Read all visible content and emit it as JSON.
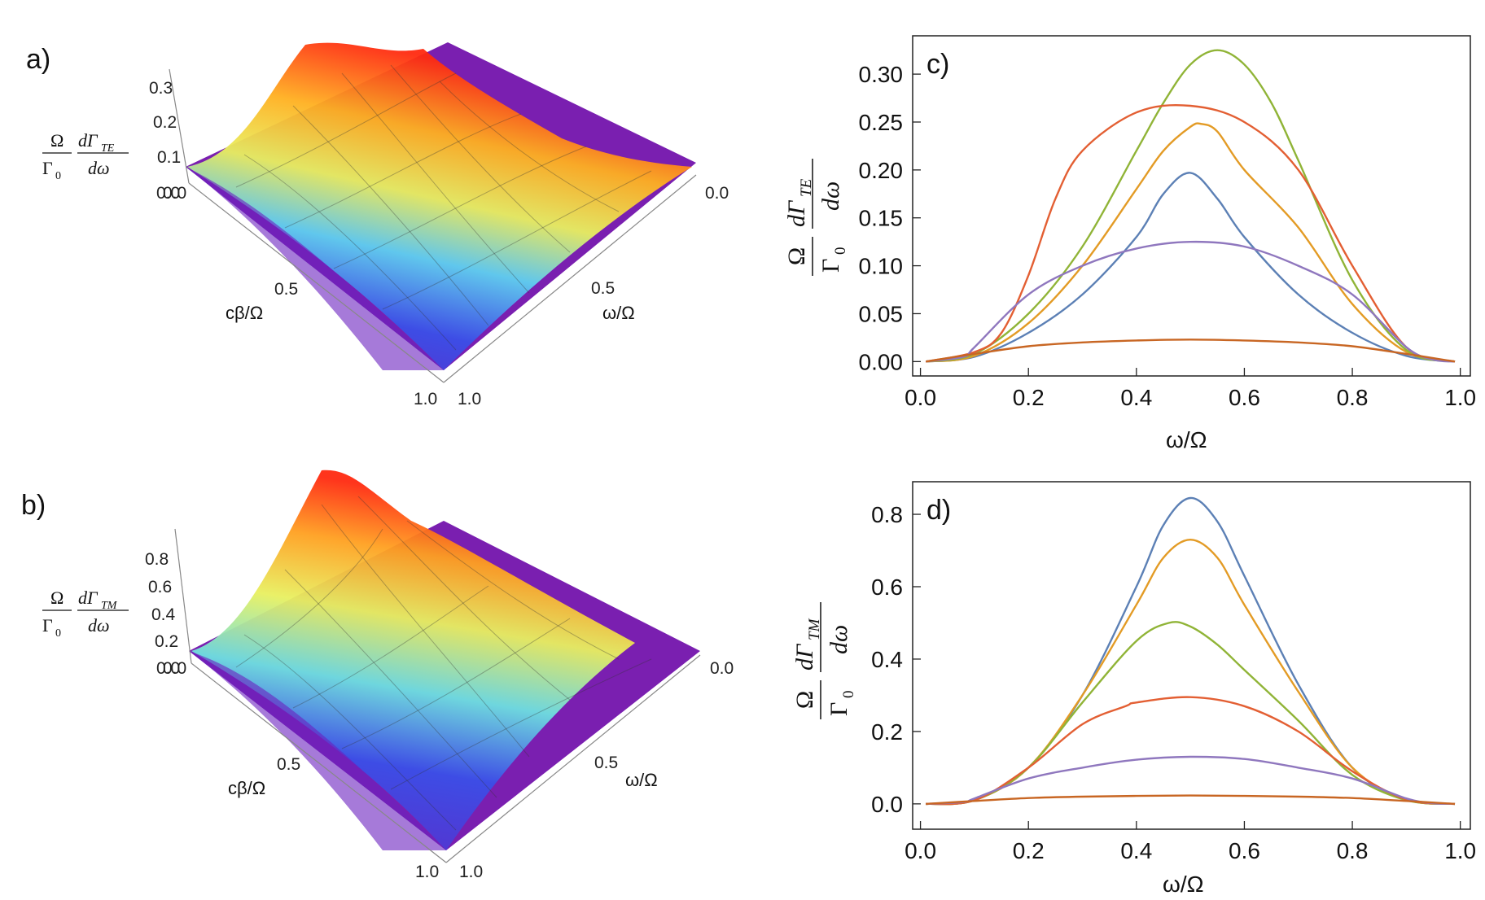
{
  "panels_3d": [
    {
      "id": "a",
      "label": "a)",
      "zlabel": {
        "num_left": "Ω",
        "den_left": "Γ",
        "den_left_sub": "0",
        "num_right": "dΓ",
        "num_right_sub": "TE",
        "den_right": "dω"
      },
      "zticks": [
        "0.0",
        "0.1",
        "0.2",
        "0.3"
      ],
      "xticks": [
        "0.0",
        "0.5",
        "1.0"
      ],
      "yticks": [
        "0.0",
        "0.5",
        "1.0"
      ],
      "xlabel": "cβ/Ω",
      "ylabel": "ω/Ω"
    },
    {
      "id": "b",
      "label": "b)",
      "zlabel": {
        "num_left": "Ω",
        "den_left": "Γ",
        "den_left_sub": "0",
        "num_right": "dΓ",
        "num_right_sub": "TM",
        "den_right": "dω"
      },
      "zticks": [
        "0.0",
        "0.2",
        "0.4",
        "0.6",
        "0.8"
      ],
      "xticks": [
        "0.0",
        "0.5",
        "1.0"
      ],
      "yticks": [
        "0.0",
        "0.5",
        "1.0"
      ],
      "xlabel": "cβ/Ω",
      "ylabel": "ω/Ω"
    }
  ],
  "chart_data": [
    {
      "id": "c",
      "type": "line",
      "label": "c)",
      "xlabel": "ω/Ω",
      "ylabel": {
        "num_left": "Ω",
        "den_left": "Γ",
        "den_left_sub": "0",
        "num_right": "dΓ",
        "num_right_sub": "TE",
        "den_right": "dω"
      },
      "xlim": [
        0,
        1
      ],
      "ylim": [
        -0.015,
        0.34
      ],
      "xticks": [
        0.0,
        0.2,
        0.4,
        0.6,
        0.8,
        1.0
      ],
      "yticks": [
        0.0,
        0.05,
        0.1,
        0.15,
        0.2,
        0.25,
        0.3
      ],
      "xtick_labels": [
        "0.0",
        "0.2",
        "0.4",
        "0.6",
        "0.8",
        "1.0"
      ],
      "ytick_labels": [
        "0.00",
        "0.05",
        "0.10",
        "0.15",
        "0.20",
        "0.25",
        "0.30"
      ],
      "series": [
        {
          "color": "#5c80b5",
          "x": [
            0.01,
            0.1,
            0.2,
            0.3,
            0.4,
            0.45,
            0.5,
            0.55,
            0.6,
            0.7,
            0.8,
            0.9,
            0.99
          ],
          "y": [
            0,
            0.005,
            0.03,
            0.07,
            0.13,
            0.175,
            0.197,
            0.17,
            0.13,
            0.07,
            0.03,
            0.006,
            0
          ]
        },
        {
          "color": "#e39b25",
          "x": [
            0.01,
            0.1,
            0.2,
            0.3,
            0.4,
            0.45,
            0.5,
            0.52,
            0.55,
            0.6,
            0.7,
            0.8,
            0.9,
            0.99
          ],
          "y": [
            0,
            0.006,
            0.04,
            0.1,
            0.18,
            0.22,
            0.245,
            0.248,
            0.24,
            0.2,
            0.14,
            0.06,
            0.01,
            0
          ]
        },
        {
          "color": "#90b437",
          "x": [
            0.01,
            0.1,
            0.2,
            0.3,
            0.4,
            0.45,
            0.5,
            0.55,
            0.6,
            0.65,
            0.7,
            0.8,
            0.9,
            0.99
          ],
          "y": [
            0,
            0.008,
            0.05,
            0.12,
            0.22,
            0.27,
            0.31,
            0.325,
            0.31,
            0.27,
            0.21,
            0.085,
            0.012,
            0
          ]
        },
        {
          "color": "#e35f33",
          "x": [
            0.01,
            0.1,
            0.15,
            0.2,
            0.25,
            0.3,
            0.4,
            0.5,
            0.6,
            0.7,
            0.8,
            0.9,
            0.99
          ],
          "y": [
            0,
            0.01,
            0.03,
            0.09,
            0.17,
            0.22,
            0.26,
            0.267,
            0.25,
            0.2,
            0.1,
            0.015,
            0
          ]
        },
        {
          "color": "#8f77be",
          "x": [
            0.01,
            0.08,
            0.1,
            0.2,
            0.3,
            0.4,
            0.5,
            0.6,
            0.7,
            0.8,
            0.9,
            0.95,
            0.99
          ],
          "y": [
            0,
            0.005,
            0.015,
            0.07,
            0.1,
            0.118,
            0.125,
            0.12,
            0.1,
            0.07,
            0.015,
            0.002,
            0
          ]
        },
        {
          "color": "#c86623",
          "x": [
            0.01,
            0.1,
            0.2,
            0.3,
            0.4,
            0.5,
            0.6,
            0.7,
            0.8,
            0.9,
            0.99
          ],
          "y": [
            0,
            0.008,
            0.016,
            0.02,
            0.022,
            0.023,
            0.022,
            0.02,
            0.016,
            0.008,
            0
          ]
        }
      ]
    },
    {
      "id": "d",
      "type": "line",
      "label": "d)",
      "xlabel": "ω/Ω",
      "ylabel": {
        "num_left": "Ω",
        "den_left": "Γ",
        "den_left_sub": "0",
        "num_right": "dΓ",
        "num_right_sub": "TM",
        "den_right": "dω"
      },
      "xlim": [
        0,
        1
      ],
      "ylim": [
        -0.07,
        0.89
      ],
      "xticks": [
        0.0,
        0.2,
        0.4,
        0.6,
        0.8,
        1.0
      ],
      "yticks": [
        0.0,
        0.2,
        0.4,
        0.6,
        0.8
      ],
      "xtick_labels": [
        "0.0",
        "0.2",
        "0.4",
        "0.6",
        "0.8",
        "1.0"
      ],
      "ytick_labels": [
        "0.0",
        "0.2",
        "0.4",
        "0.6",
        "0.8"
      ],
      "series": [
        {
          "color": "#5c80b5",
          "x": [
            0.01,
            0.1,
            0.2,
            0.3,
            0.4,
            0.45,
            0.5,
            0.55,
            0.6,
            0.7,
            0.8,
            0.9,
            0.99
          ],
          "y": [
            0,
            0.01,
            0.1,
            0.3,
            0.6,
            0.77,
            0.845,
            0.78,
            0.63,
            0.33,
            0.1,
            0.012,
            0
          ]
        },
        {
          "color": "#e39b25",
          "x": [
            0.01,
            0.1,
            0.2,
            0.3,
            0.4,
            0.45,
            0.5,
            0.55,
            0.6,
            0.7,
            0.8,
            0.9,
            0.99
          ],
          "y": [
            0,
            0.01,
            0.1,
            0.3,
            0.55,
            0.68,
            0.73,
            0.68,
            0.55,
            0.31,
            0.1,
            0.012,
            0
          ]
        },
        {
          "color": "#90b437",
          "x": [
            0.01,
            0.1,
            0.2,
            0.3,
            0.4,
            0.46,
            0.5,
            0.55,
            0.6,
            0.7,
            0.8,
            0.9,
            0.99
          ],
          "y": [
            0,
            0.01,
            0.1,
            0.28,
            0.45,
            0.5,
            0.49,
            0.44,
            0.37,
            0.23,
            0.08,
            0.01,
            0
          ]
        },
        {
          "color": "#e35f33",
          "x": [
            0.01,
            0.1,
            0.2,
            0.3,
            0.38,
            0.4,
            0.5,
            0.6,
            0.7,
            0.8,
            0.9,
            0.99
          ],
          "y": [
            0,
            0.01,
            0.1,
            0.22,
            0.27,
            0.28,
            0.295,
            0.27,
            0.2,
            0.09,
            0.012,
            0
          ]
        },
        {
          "color": "#8f77be",
          "x": [
            0.01,
            0.08,
            0.1,
            0.2,
            0.3,
            0.4,
            0.5,
            0.6,
            0.7,
            0.8,
            0.9,
            0.95,
            0.99
          ],
          "y": [
            0,
            0.005,
            0.015,
            0.07,
            0.1,
            0.122,
            0.13,
            0.124,
            0.1,
            0.07,
            0.015,
            0.002,
            0
          ]
        },
        {
          "color": "#c86623",
          "x": [
            0.01,
            0.1,
            0.2,
            0.3,
            0.4,
            0.5,
            0.6,
            0.7,
            0.8,
            0.9,
            0.99
          ],
          "y": [
            0,
            0.008,
            0.016,
            0.02,
            0.022,
            0.023,
            0.022,
            0.02,
            0.016,
            0.008,
            0
          ]
        }
      ]
    }
  ]
}
